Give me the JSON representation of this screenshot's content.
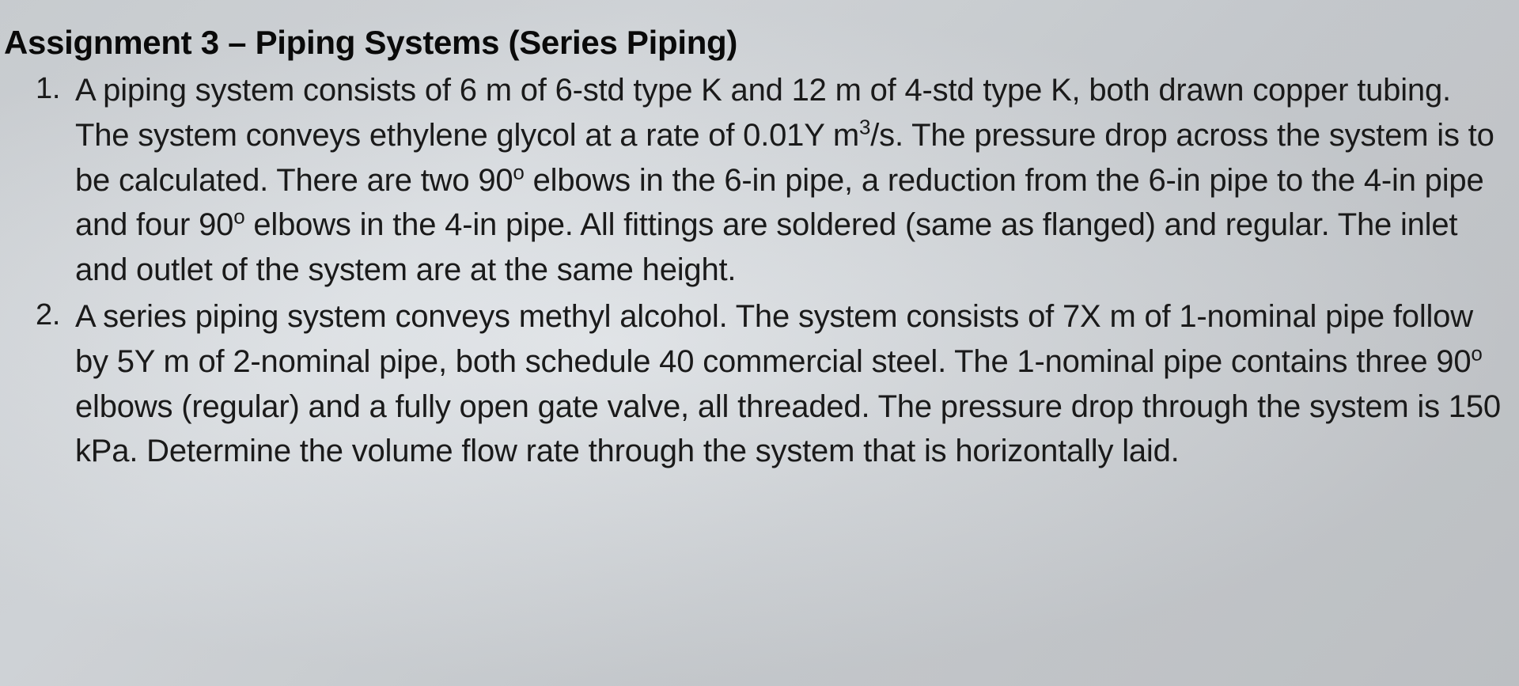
{
  "document": {
    "title": "Assignment 3 – Piping Systems (Series Piping)",
    "text_color": "#1a1a1a",
    "title_color": "#0a0a0a",
    "background_gradient_start": "#d8dce0",
    "background_gradient_end": "#cccfd3",
    "title_fontsize": 42,
    "body_fontsize": 40,
    "list_number_fontsize": 38,
    "line_height": 1.42,
    "font_family": "Segoe UI",
    "items": [
      {
        "number": "1.",
        "text_parts": [
          "A piping system consists of 6 m of 6-std type K and 12 m of 4-std type K, both drawn copper tubing. The system conveys ethylene glycol at a rate of 0.01Y m",
          "3",
          "/s. The pressure drop across the system is to be calculated. There are two 90",
          "o",
          " elbows in the 6-in pipe, a reduction from the 6-in pipe to the 4-in pipe and four 90",
          "o",
          " elbows in the 4-in pipe. All fittings are soldered (same as flanged) and regular. The inlet and outlet of the system are at the same height."
        ]
      },
      {
        "number": "2.",
        "text_parts": [
          "A series piping system conveys methyl alcohol. The system consists of 7X m of 1-nominal pipe follow by 5Y m of 2-nominal pipe, both schedule 40 commercial steel. The 1-nominal pipe contains three 90",
          "o",
          " elbows (regular) and a fully open gate valve, all threaded. The pressure drop through the system is 150 kPa. Determine the volume flow rate through the system that is horizontally laid."
        ]
      }
    ]
  }
}
